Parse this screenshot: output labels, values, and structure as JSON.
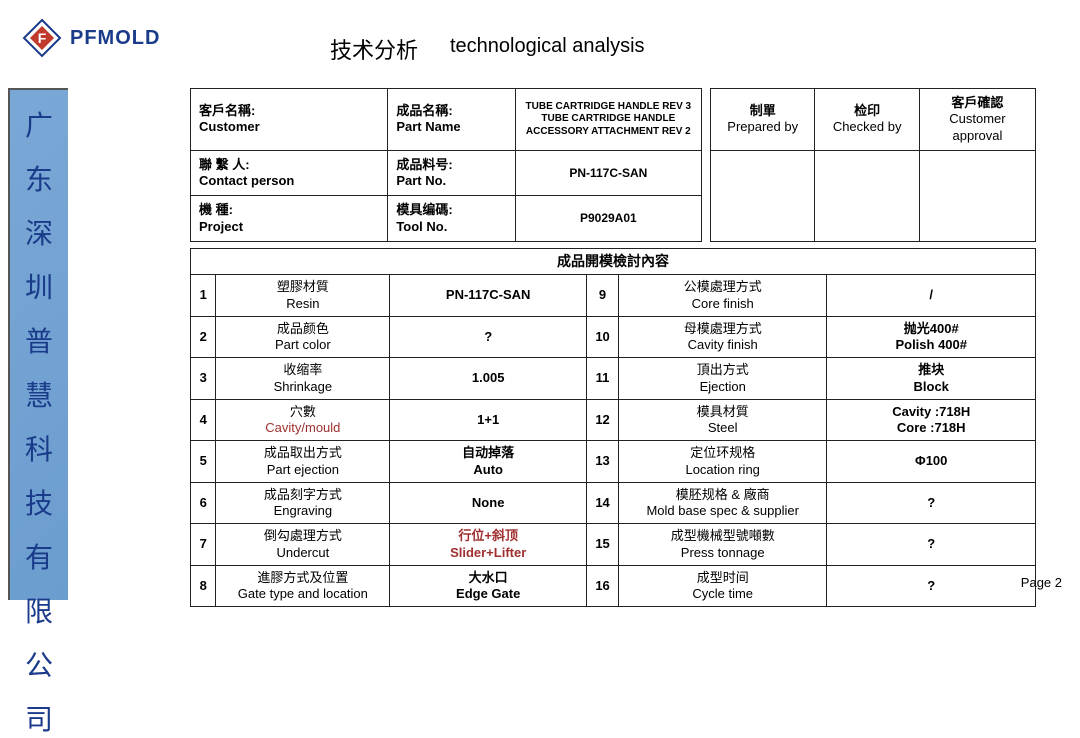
{
  "brand": "PFMOLD",
  "title_zh": "技术分析",
  "title_en": "technological analysis",
  "side_company": [
    "广",
    "东",
    "深",
    "圳",
    "普",
    "慧",
    "科",
    "技",
    "有",
    "限",
    "公",
    "司"
  ],
  "page_label": "Page 2",
  "top": {
    "c1": [
      {
        "cn": "客戶名稱:",
        "en": "Customer"
      },
      {
        "cn": "聯 繫 人:",
        "en": "Contact person"
      },
      {
        "cn": "機 種:",
        "en": "Project"
      }
    ],
    "c2": [
      {
        "cn": "成品名稱:",
        "en": "Part Name",
        "val": "TUBE CARTRIDGE HANDLE REV 3\nTUBE CARTRIDGE HANDLE ACCESSORY ATTACHMENT REV 2"
      },
      {
        "cn": "成品料号:",
        "en": "Part No.",
        "val": "PN-117C-SAN"
      },
      {
        "cn": "模具编碼:",
        "en": "Tool No.",
        "val": "P9029A01"
      }
    ],
    "right_headers": [
      {
        "cn": "制單",
        "en": "Prepared by"
      },
      {
        "cn": "检印",
        "en": "Checked  by"
      },
      {
        "cn": "客戶確認",
        "en": "Customer approval"
      }
    ]
  },
  "section_title": "成品開模檢討內容",
  "rows": [
    {
      "n": 1,
      "lcn": "塑膠材質",
      "len": "Resin",
      "lv": "PN-117C-SAN",
      "r": 9,
      "rcn": "公模處理方式",
      "ren": "Core finish",
      "rv": "/"
    },
    {
      "n": 2,
      "lcn": "成品颜色",
      "len": "Part color",
      "lv": "?",
      "r": 10,
      "rcn": "母模處理方式",
      "ren": "Cavity finish",
      "rv": "抛光400#\nPolish 400#"
    },
    {
      "n": 3,
      "lcn": "收缩率",
      "len": "Shrinkage",
      "lv": "1.005",
      "r": 11,
      "rcn": "頂出方式",
      "ren": "Ejection",
      "rv": "推块\nBlock"
    },
    {
      "n": 4,
      "lcn": "穴數",
      "len": "Cavity/mould",
      "lv": "1+1",
      "r": 12,
      "rcn": "模具材質",
      "ren": "Steel",
      "rv": "Cavity :718H\nCore :718H",
      "left_red": true
    },
    {
      "n": 5,
      "lcn": "成品取出方式",
      "len": "Part ejection",
      "lv": "自动掉落\nAuto",
      "r": 13,
      "rcn": "定位环规格",
      "ren": "Location ring",
      "rv": "Φ100"
    },
    {
      "n": 6,
      "lcn": "成品刻字方式",
      "len": "Engraving",
      "lv": "None",
      "r": 14,
      "rcn": "模胚规格 & 廠商",
      "ren": "Mold base spec & supplier",
      "rv": "?"
    },
    {
      "n": 7,
      "lcn": "倒勾處理方式",
      "len": "Undercut",
      "lv": "行位+斜顶\nSlider+Lifter",
      "r": 15,
      "rcn": "成型機械型號噸數",
      "ren": "Press tonnage",
      "rv": "?",
      "lv_red": true
    },
    {
      "n": 8,
      "lcn": "進膠方式及位置",
      "len": "Gate type and location",
      "lv": "大水口\nEdge Gate",
      "r": 16,
      "rcn": "成型时间",
      "ren": "Cycle time",
      "rv": "?"
    }
  ],
  "colors": {
    "side_bg": "#6b9dcf",
    "side_text": "#1a3a8a",
    "brand": "#1a3a8a",
    "border": "#222222",
    "red": "#a03030"
  }
}
